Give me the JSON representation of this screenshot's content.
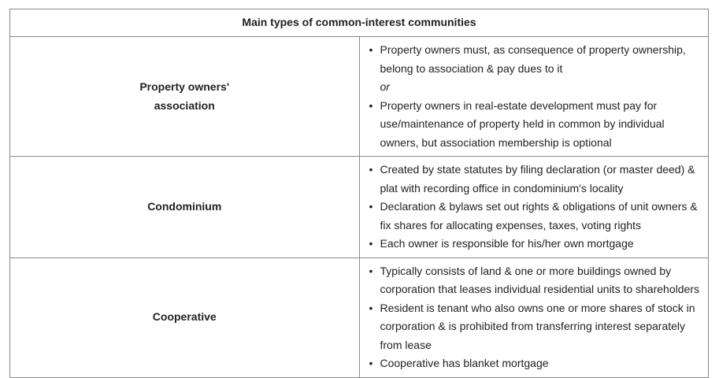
{
  "table": {
    "title": "Main types of common-interest communities",
    "rows": [
      {
        "label": "Property owners' association",
        "items": [
          "Property owners must, as consequence of property ownership, belong to association & pay dues to it",
          "Property owners in real-estate development must pay for use/maintenance of property held in common by individual owners, but association membership is optional"
        ],
        "separator": "or"
      },
      {
        "label": "Condominium",
        "items": [
          "Created by state statutes by filing declaration (or master deed) & plat with recording office in condominium's locality",
          "Declaration & bylaws set out rights & obligations of unit owners & fix shares for allocating expenses, taxes, voting rights",
          "Each owner is responsible for his/her own mortgage"
        ]
      },
      {
        "label": "Cooperative",
        "items": [
          "Typically consists of land & one or more buildings owned by corporation that leases individual residential units to shareholders",
          "Resident is tenant who also owns one or more shares of stock in corporation & is prohibited from transferring interest separately from lease",
          "Cooperative has blanket mortgage"
        ]
      }
    ]
  }
}
